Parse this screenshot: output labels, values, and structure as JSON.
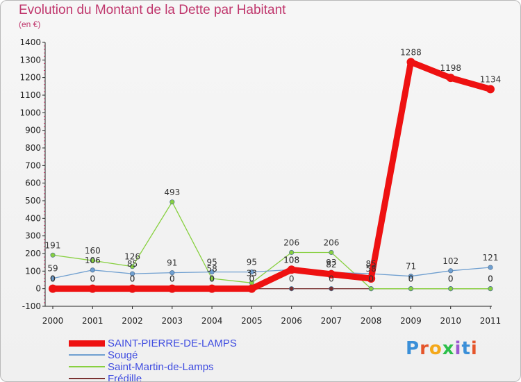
{
  "chart_data": {
    "type": "line",
    "title": "Evolution du Montant de la Dette par Habitant",
    "subtitle": "(en €)",
    "x": [
      "2000",
      "2001",
      "2002",
      "2003",
      "2004",
      "2005",
      "2006",
      "2007",
      "2008",
      "2009",
      "2010",
      "2011"
    ],
    "yticks": [
      -100,
      0,
      100,
      200,
      300,
      400,
      500,
      600,
      700,
      800,
      900,
      1000,
      1100,
      1200,
      1300,
      1400
    ],
    "ylim": [
      -100,
      1400
    ],
    "grid": false,
    "legend_position": "bottom-left",
    "series": [
      {
        "name": "SAINT-PIERRE-DE-LAMPS",
        "color": "#ee1111",
        "values": [
          0,
          0,
          0,
          0,
          0,
          0,
          108,
          82,
          58,
          1288,
          1198,
          1134
        ]
      },
      {
        "name": "Sougé",
        "color": "#6f9fd0",
        "values": [
          59,
          106,
          85,
          91,
          95,
          95,
          108,
          93,
          85,
          71,
          102,
          121
        ]
      },
      {
        "name": "Saint-Martin-de-Lamps",
        "color": "#88d040",
        "values": [
          191,
          160,
          126,
          493,
          58,
          33,
          206,
          206,
          0,
          0,
          0,
          0
        ]
      },
      {
        "name": "Frédille",
        "color": "#7a3232",
        "values": [
          0,
          0,
          0,
          0,
          0,
          0,
          0,
          0,
          0,
          0,
          0,
          0
        ]
      }
    ]
  },
  "brand": {
    "text": "Proxiti",
    "colors": [
      "#3a8fd8",
      "#e5552a",
      "#f4a81a",
      "#2cbf4a",
      "#9b59d0",
      "#3a8fd8",
      "#e5552a"
    ]
  }
}
